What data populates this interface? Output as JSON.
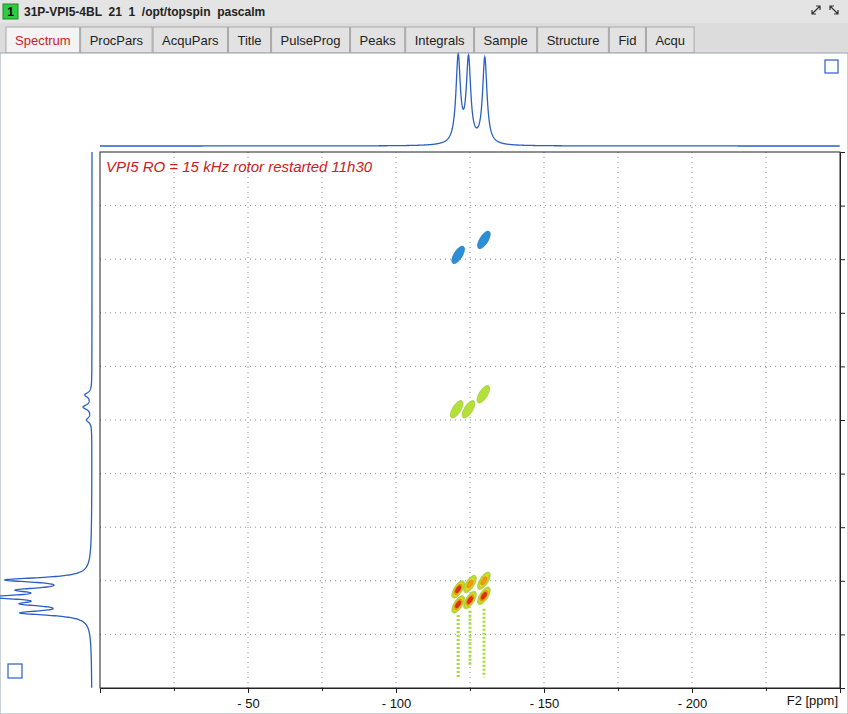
{
  "window": {
    "number": "1",
    "title": "31P-VPI5-4BL  21  1  /opt/topspin  pascalm",
    "tabs": [
      "Spectrum",
      "ProcPars",
      "AcquPars",
      "Title",
      "PulseProg",
      "Peaks",
      "Integrals",
      "Sample",
      "Structure",
      "Fid",
      "Acqu"
    ],
    "active_tab": "Spectrum"
  },
  "chart_data": {
    "type": "contour",
    "annotation": "VPI5 RO = 15 kHz rotor restarted 11h30",
    "x_label": "F2 [ppm]",
    "xlim": [
      0,
      -250
    ],
    "xticks": [
      {
        "value": -50,
        "label": "- 50"
      },
      {
        "value": -100,
        "label": "- 100"
      },
      {
        "value": -150,
        "label": "- 150"
      },
      {
        "value": -200,
        "label": "- 200"
      }
    ],
    "x_minor_ticks": [
      -25,
      -75,
      -125,
      -175,
      -225
    ],
    "ylim": [
      0,
      -250
    ],
    "yticks": [
      -25,
      -50,
      -75,
      -100,
      -125,
      -150,
      -175,
      -200,
      -225
    ],
    "tick_labels": "x",
    "grid": true,
    "levels": [
      -1,
      1,
      2,
      3,
      4
    ],
    "level_colors": [
      "#2a8fd6",
      "#b4e03a",
      "#e8e020",
      "#f29a10",
      "#e82a1a"
    ],
    "peaks": [
      {
        "x": -121,
        "y": -48,
        "intensity": -1
      },
      {
        "x": -129.7,
        "y": -41,
        "intensity": -1
      },
      {
        "x": -120.5,
        "y": -120,
        "intensity": 1
      },
      {
        "x": -124.5,
        "y": -120,
        "intensity": 1
      },
      {
        "x": -129.5,
        "y": -113,
        "intensity": 1
      },
      {
        "x": -121,
        "y": -204,
        "intensity": 4
      },
      {
        "x": -121,
        "y": -211,
        "intensity": 4
      },
      {
        "x": -125,
        "y": -201.5,
        "intensity": 3
      },
      {
        "x": -125,
        "y": -209,
        "intensity": 4
      },
      {
        "x": -129.7,
        "y": -200,
        "intensity": 3
      },
      {
        "x": -129.7,
        "y": -207,
        "intensity": 4
      }
    ],
    "ridges": [
      {
        "x": -121,
        "y_from": -216,
        "y_to": -245
      },
      {
        "x": -125,
        "y_from": -214,
        "y_to": -240
      },
      {
        "x": -129.7,
        "y_from": -213,
        "y_to": -245
      }
    ],
    "f2_projection": {
      "x": [
        -121,
        -124.5,
        -130
      ],
      "heights": [
        1,
        0.97,
        1
      ]
    },
    "f1_projection": {
      "y": [
        -113.3,
        -119,
        -125,
        -199.6,
        -204.3,
        -207.6,
        -210.8,
        -215
      ],
      "heights": [
        0.08,
        0.1,
        0.06,
        0.95,
        0.68,
        1,
        0.62,
        0.76
      ]
    }
  }
}
